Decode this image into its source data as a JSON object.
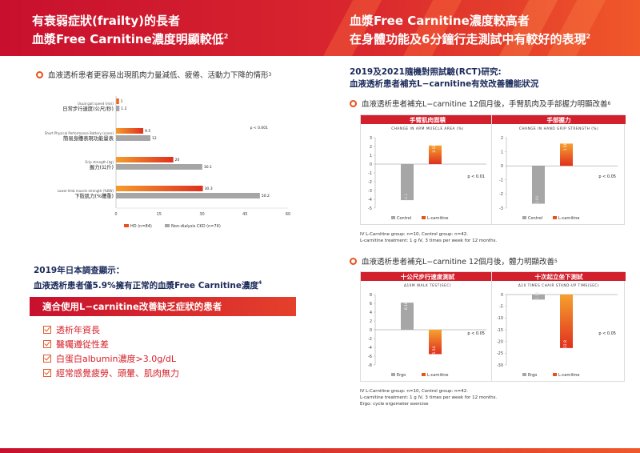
{
  "header": {
    "left_line1": "有衰弱症狀(frailty)的長者",
    "left_line2": "血漿Free Carnitine濃度明顯較低",
    "left_sup": "2",
    "right_line1": "血漿Free Carnitine濃度較高者",
    "right_line2": "在身體功能及6分鐘行走測試中有較好的表現",
    "right_sup": "2"
  },
  "left": {
    "bullet": "血液透析患者更容易出現肌肉力量減低、疲倦、活動力下降的情形",
    "bullet_sup": "3",
    "chart_data": {
      "type": "bar",
      "orientation": "horizontal",
      "categories_en": [
        "Usual gait speed (m/s)",
        "Short Physical Performance Battery (score)",
        "Grip strength (kg)",
        "Lower-limb muscle strength (%BW)"
      ],
      "categories": [
        "日常步行速度(公尺/秒)",
        "簡易身體表現功能量表",
        "握力(公斤)",
        "下肢肌力(%體重)"
      ],
      "series": [
        {
          "name": "HD (n=84)",
          "values": [
            1,
            9.5,
            20,
            30.3
          ],
          "labels": [
            "1",
            "9.5",
            "20",
            "30.3"
          ],
          "color": "#e8501e"
        },
        {
          "name": "Non-dialysis CKD (n=74)",
          "values": [
            1.2,
            12,
            30.1,
            50.2
          ],
          "labels": [
            "1.2",
            "12",
            "30.1",
            "50.2"
          ],
          "color": "#a6a6a6"
        }
      ],
      "xlim": [
        0,
        60
      ],
      "xticks": [
        "0",
        "15",
        "30",
        "45",
        "60"
      ],
      "annotation": "p < 0.001"
    }
  },
  "survey": {
    "line1": "2019年日本調查顯示：",
    "line2": "血液透析患者僅5.9%擁有正常的血漿Free Carnitine濃度",
    "sup": "4"
  },
  "suitable": {
    "banner": "適合使用L−carnitine改善缺乏症狀的患者",
    "items": [
      "透析年資長",
      "醫囑遵從性差",
      "白蛋白albumin濃度>3.0g/dL",
      "經常感覺疲勞、頭暈、肌肉無力"
    ]
  },
  "rct": {
    "line1": "2019及2021隨機對照試驗(RCT)研究:",
    "line2": "血液透析患者補充L−carnitine有效改善體能狀況"
  },
  "section1": {
    "bullet": "血液透析患者補充L−carnitine 12個月後，手臂肌肉及手部握力明顯改善",
    "bullet_sup": "6",
    "footnote1": "IV L-Carnitine group: n=10, Control group: n=42.",
    "footnote2": "L-carnitine treatment: 1 g IV, 3 times per week for 12 months."
  },
  "section2": {
    "bullet": "血液透析患者補充L−carnitine 12個月後，體力明顯改善",
    "bullet_sup": "5",
    "footnote1": "IV L-Carnitine group: n=10, Control group: n=42.",
    "footnote2": "L-carnitine treatment: 1 g IV, 3 times per week for 12 months.",
    "footnote3": "Ergo: cycle ergometer exercise"
  },
  "chart_data": [
    {
      "type": "bar",
      "title": "手臂肌肉面積",
      "subtitle": "CHANGE IN ARM MUSCLE AREA (%)",
      "categories": [
        "Control",
        "L-carnitine"
      ],
      "values": [
        -4.1,
        2.11
      ],
      "labels": [
        "-4.1",
        "2.11"
      ],
      "ylim": [
        -5,
        3
      ],
      "yticks": [
        3,
        2,
        1,
        0,
        -1,
        -2,
        -3,
        -4,
        -5
      ],
      "annotation": "p < 0.01"
    },
    {
      "type": "bar",
      "title": "手部握力",
      "subtitle": "CHANGE IN HAND GRIP STRENGTH (%)",
      "categories": [
        "Control",
        "L-carnitine"
      ],
      "values": [
        -2.69,
        1.58
      ],
      "labels": [
        "-2.69",
        "1.58"
      ],
      "ylim": [
        -3,
        2
      ],
      "yticks": [
        2,
        1,
        0,
        -1,
        -2,
        -3
      ],
      "annotation": "p < 0.05"
    },
    {
      "type": "bar",
      "title": "十公尺步行速度測試",
      "subtitle": "Δ10M WALK TEST(SEC)",
      "categories": [
        "Ergo",
        "L-carnitine"
      ],
      "values": [
        6.16,
        -5.54
      ],
      "labels": [
        "6.16",
        "-5.54"
      ],
      "ylim": [
        -8,
        8
      ],
      "yticks": [
        8,
        6,
        4,
        2,
        0,
        -2,
        -4,
        -6,
        -8
      ],
      "annotation": "p < 0.05"
    },
    {
      "type": "bar",
      "title": "十次起立坐下測試",
      "subtitle": "Δ10 TIMES CHAIR STAND-UP TIME(SEC)",
      "categories": [
        "Ergo",
        "L-carnitine"
      ],
      "values": [
        -2.16,
        -22.8
      ],
      "labels": [
        "-2.16",
        "-22.8"
      ],
      "ylim": [
        -30,
        0
      ],
      "yticks": [
        0,
        -5,
        -10,
        -15,
        -20,
        -25,
        -30
      ],
      "annotation": "p < 0.05"
    }
  ],
  "colors": {
    "accent": "#e8501e",
    "brand_red": "#c8102e",
    "grey_bar": "#a6a6a6",
    "navy": "#1a2a5a"
  }
}
